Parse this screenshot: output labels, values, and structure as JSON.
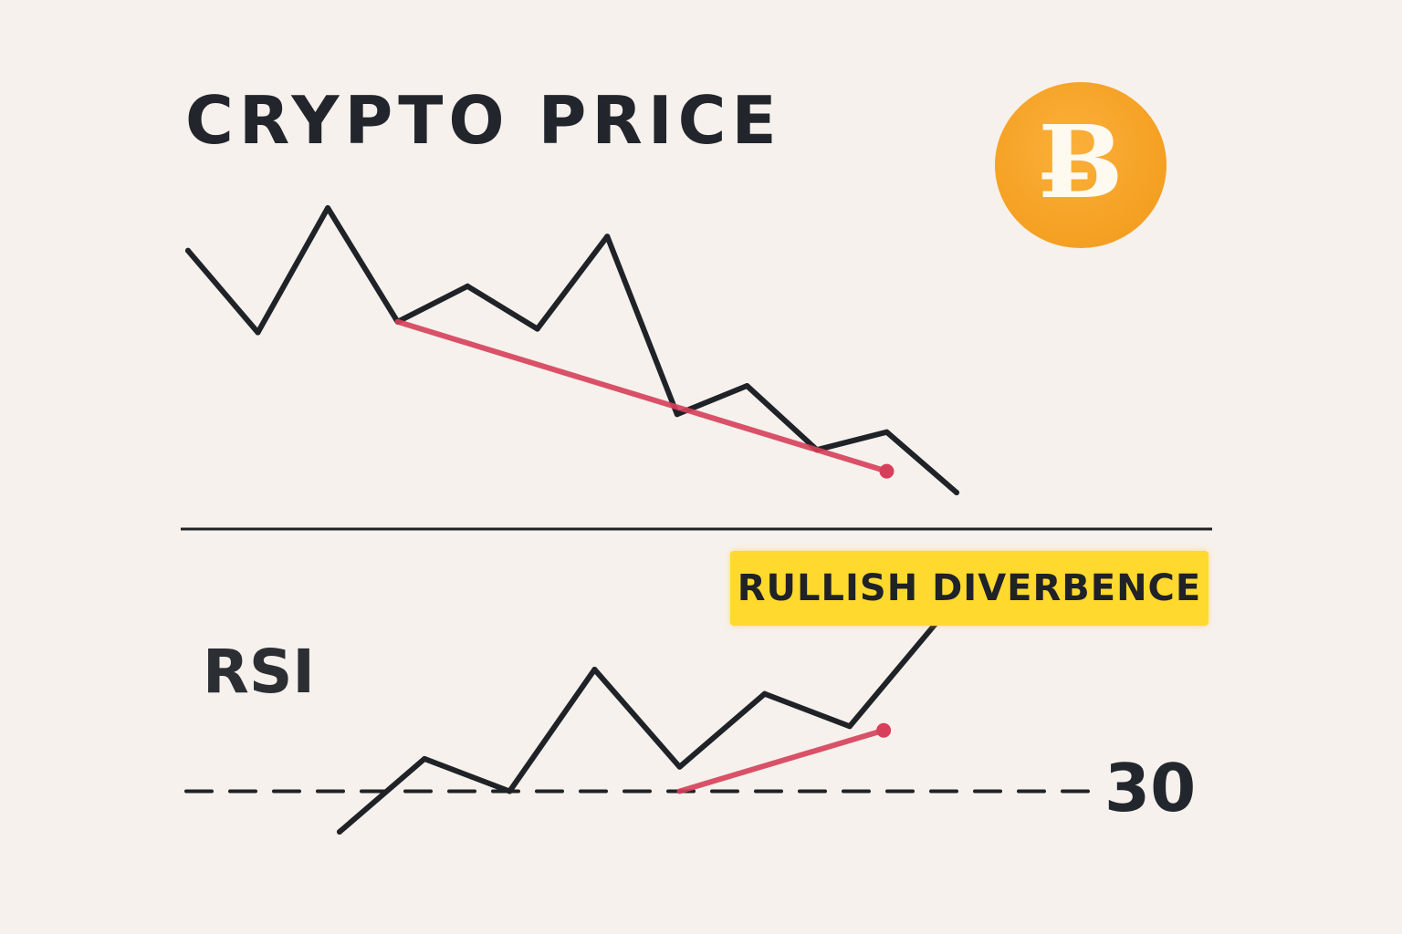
{
  "chart_data": [
    {
      "type": "line",
      "title": "CRYPTO PRICE",
      "icon": "bitcoin-coin-icon",
      "series": [
        {
          "values": [
            68,
            45,
            80,
            48,
            58,
            46,
            72,
            22,
            30,
            12,
            17,
            0
          ]
        }
      ],
      "trendline": {
        "from": [
          3,
          48
        ],
        "to": [
          10,
          6
        ],
        "color": "#d6405a",
        "direction": "down"
      }
    },
    {
      "type": "line",
      "title": "RSI",
      "series": [
        {
          "values": [
            20,
            38,
            30,
            60,
            36,
            54,
            46,
            71
          ]
        }
      ],
      "reference_line": {
        "value": 30,
        "label": "30",
        "style": "dashed"
      },
      "trendline": {
        "from": [
          4,
          30
        ],
        "to": [
          6.4,
          45
        ],
        "color": "#d6405a",
        "direction": "up"
      },
      "annotation": {
        "text": "RULLISH DIVERBENCE",
        "color": "#ffd92e"
      }
    }
  ],
  "coin": {
    "glyph": "Ƀ",
    "color": "#f5a225"
  },
  "colors": {
    "background": "#f6f1ec",
    "line": "#1f2227",
    "trend": "#d6405a",
    "badge": "#ffd92e"
  }
}
